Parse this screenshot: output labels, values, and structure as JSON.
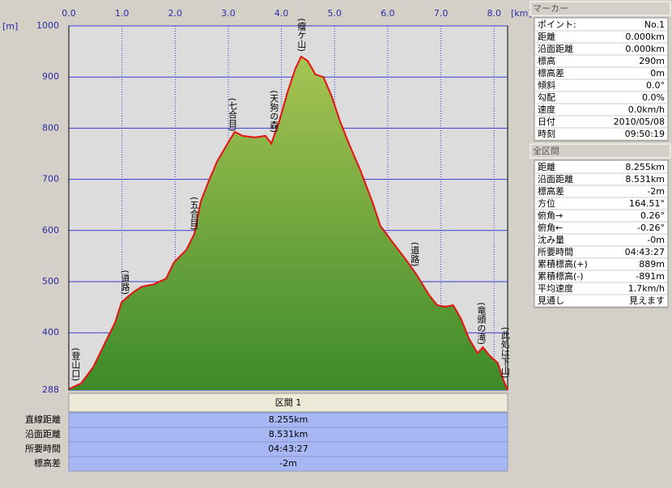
{
  "chart_data": {
    "type": "area-line",
    "x_unit": "[km]",
    "y_unit": "[m]",
    "x": [
      0,
      0.23,
      0.46,
      0.68,
      0.87,
      0.99,
      1.07,
      1.22,
      1.37,
      1.6,
      1.83,
      1.98,
      2.21,
      2.36,
      2.48,
      2.63,
      2.79,
      2.97,
      3.12,
      3.27,
      3.5,
      3.7,
      3.81,
      3.96,
      4.11,
      4.26,
      4.37,
      4.49,
      4.64,
      4.79,
      4.95,
      5.1,
      5.28,
      5.48,
      5.71,
      5.86,
      6.09,
      6.32,
      6.54,
      6.77,
      6.93,
      7.08,
      7.23,
      7.38,
      7.53,
      7.69,
      7.79,
      7.91,
      8.07,
      8.17,
      8.255
    ],
    "values": [
      290,
      301,
      333,
      380,
      420,
      459,
      467,
      480,
      490,
      495,
      506,
      538,
      562,
      593,
      656,
      696,
      735,
      767,
      793,
      785,
      782,
      785,
      770,
      814,
      869,
      916,
      940,
      932,
      905,
      900,
      861,
      814,
      767,
      719,
      656,
      609,
      577,
      546,
      514,
      475,
      454,
      451,
      454,
      427,
      388,
      360,
      372,
      356,
      341,
      309,
      288
    ],
    "color": "#e81010",
    "fill_top": "#a6c453",
    "fill_bottom": "#3d8a2a",
    "xlim": [
      0,
      8.255
    ],
    "ylim": [
      288,
      1000
    ],
    "xticks": [
      {
        "value": 0,
        "label": "0.0"
      },
      {
        "value": 1,
        "label": "1.0"
      },
      {
        "value": 2,
        "label": "2.0"
      },
      {
        "value": 3,
        "label": "3.0"
      },
      {
        "value": 4,
        "label": "4.0"
      },
      {
        "value": 5,
        "label": "5.0"
      },
      {
        "value": 6,
        "label": "6.0"
      },
      {
        "value": 7,
        "label": "7.0"
      },
      {
        "value": 8,
        "label": "8.0"
      }
    ],
    "yticks": [
      288,
      400,
      500,
      600,
      700,
      800,
      900,
      1000
    ],
    "grid": true,
    "annotations": [
      {
        "text": "(登山口)",
        "x": 0.12
      },
      {
        "text": "(道路)",
        "x": 1.05
      },
      {
        "text": "(五合目)",
        "x": 2.35
      },
      {
        "text": "(七合目)",
        "x": 3.07
      },
      {
        "text": "(天狗の森)",
        "x": 3.85
      },
      {
        "text": "(瘤ケ山)",
        "x": 4.37
      },
      {
        "text": "(道路)",
        "x": 6.5
      },
      {
        "text": "(竜頭の滝)",
        "x": 7.75
      },
      {
        "text": "(此処は下山)",
        "x": 8.2
      }
    ]
  },
  "section": {
    "title": "区間 1",
    "rows": [
      [
        "直線距離",
        "8.255km"
      ],
      [
        "沿面距離",
        "8.531km"
      ],
      [
        "所要時間",
        "04:43:27"
      ],
      [
        "標高差",
        "-2m"
      ]
    ]
  },
  "marker": {
    "title": "マーカー",
    "rows": [
      [
        "ポイント:",
        "No.1"
      ],
      [
        "距離",
        "0.000km"
      ],
      [
        "沿面距離",
        "0.000km"
      ],
      [
        "標高",
        "290m"
      ],
      [
        "標高差",
        "0m"
      ],
      [
        "傾斜",
        "0.0°"
      ],
      [
        "勾配",
        "0.0%"
      ],
      [
        "速度",
        "0.0km/h"
      ],
      [
        "日付",
        "2010/05/08"
      ],
      [
        "時刻",
        "09:50:19"
      ]
    ]
  },
  "total": {
    "title": "全区間",
    "rows": [
      [
        "距離",
        "8.255km"
      ],
      [
        "沿面距離",
        "8.531km"
      ],
      [
        "標高差",
        "-2m"
      ],
      [
        "方位",
        "164.51°"
      ],
      [
        "俯角→",
        "0.26°"
      ],
      [
        "俯角←",
        "-0.26°"
      ],
      [
        "沈み量",
        "-0m"
      ],
      [
        "所要時間",
        "04:43:27"
      ],
      [
        "累積標高(+)",
        "889m"
      ],
      [
        "累積標高(-)",
        "-891m"
      ],
      [
        "平均速度",
        "1.7km/h"
      ],
      [
        "見通し",
        "見えます"
      ]
    ]
  }
}
